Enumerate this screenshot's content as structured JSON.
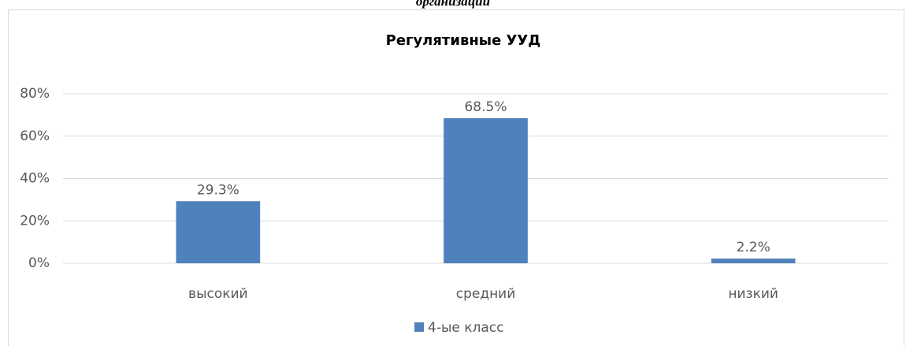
{
  "caption": "организаций",
  "chart_data": {
    "type": "bar",
    "title": "Регулятивные УУД",
    "categories": [
      "высокий",
      "средний",
      "низкий"
    ],
    "series": [
      {
        "name": "4-ые класс",
        "color": "#4f81bd",
        "values": [
          29.3,
          68.5,
          2.2
        ],
        "value_labels": [
          "29.3%",
          "68.5%",
          "2.2%"
        ]
      }
    ],
    "ylim": [
      0,
      80
    ],
    "yticks": [
      {
        "value": 0,
        "label": "0%"
      },
      {
        "value": 20,
        "label": "20%"
      },
      {
        "value": 40,
        "label": "40%"
      },
      {
        "value": 60,
        "label": "60%"
      },
      {
        "value": 80,
        "label": "80%"
      }
    ],
    "grid": true,
    "legend": "bottom"
  }
}
